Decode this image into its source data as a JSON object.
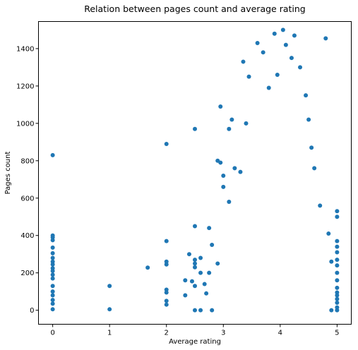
{
  "chart_data": {
    "type": "scatter",
    "title": "Relation between pages count and average rating",
    "xlabel": "Average rating",
    "ylabel": "Pages count",
    "xlim": [
      -0.25,
      5.25
    ],
    "ylim": [
      -75,
      1545
    ],
    "xticks": [
      0,
      1,
      2,
      3,
      4,
      5
    ],
    "yticks": [
      0,
      200,
      400,
      600,
      800,
      1000,
      1200,
      1400
    ],
    "marker_color": "#1f77b4",
    "grid": false,
    "series": [
      {
        "points": [
          [
            0,
            830
          ],
          [
            0,
            400
          ],
          [
            0,
            390
          ],
          [
            0,
            375
          ],
          [
            0,
            335
          ],
          [
            0,
            305
          ],
          [
            0,
            280
          ],
          [
            0,
            260
          ],
          [
            0,
            245
          ],
          [
            0,
            225
          ],
          [
            0,
            210
          ],
          [
            0,
            190
          ],
          [
            0,
            170
          ],
          [
            0,
            130
          ],
          [
            0,
            100
          ],
          [
            0,
            80
          ],
          [
            0,
            55
          ],
          [
            0,
            35
          ],
          [
            0,
            5
          ],
          [
            1,
            130
          ],
          [
            1,
            5
          ],
          [
            1.67,
            228
          ],
          [
            2,
            890
          ],
          [
            2,
            370
          ],
          [
            2,
            260
          ],
          [
            2,
            245
          ],
          [
            2,
            110
          ],
          [
            2,
            95
          ],
          [
            2,
            50
          ],
          [
            2,
            30
          ],
          [
            2.33,
            160
          ],
          [
            2.33,
            80
          ],
          [
            2.4,
            300
          ],
          [
            2.45,
            155
          ],
          [
            2.5,
            970
          ],
          [
            2.5,
            450
          ],
          [
            2.5,
            270
          ],
          [
            2.5,
            250
          ],
          [
            2.5,
            230
          ],
          [
            2.5,
            130
          ],
          [
            2.5,
            0
          ],
          [
            2.6,
            280
          ],
          [
            2.6,
            200
          ],
          [
            2.6,
            0
          ],
          [
            2.67,
            140
          ],
          [
            2.7,
            90
          ],
          [
            2.75,
            440
          ],
          [
            2.75,
            200
          ],
          [
            2.8,
            350
          ],
          [
            2.8,
            0
          ],
          [
            2.9,
            800
          ],
          [
            2.9,
            250
          ],
          [
            2.95,
            1090
          ],
          [
            2.95,
            790
          ],
          [
            3.0,
            720
          ],
          [
            3.0,
            660
          ],
          [
            3.1,
            970
          ],
          [
            3.1,
            580
          ],
          [
            3.15,
            1020
          ],
          [
            3.2,
            760
          ],
          [
            3.3,
            740
          ],
          [
            3.35,
            1330
          ],
          [
            3.4,
            1000
          ],
          [
            3.45,
            1250
          ],
          [
            3.6,
            1430
          ],
          [
            3.7,
            1380
          ],
          [
            3.8,
            1190
          ],
          [
            3.9,
            1480
          ],
          [
            3.95,
            1260
          ],
          [
            4.05,
            1500
          ],
          [
            4.1,
            1420
          ],
          [
            4.2,
            1350
          ],
          [
            4.25,
            1470
          ],
          [
            4.35,
            1300
          ],
          [
            4.45,
            1150
          ],
          [
            4.5,
            1020
          ],
          [
            4.55,
            870
          ],
          [
            4.6,
            760
          ],
          [
            4.7,
            560
          ],
          [
            4.8,
            1455
          ],
          [
            4.85,
            410
          ],
          [
            4.9,
            260
          ],
          [
            4.9,
            0
          ],
          [
            5,
            530
          ],
          [
            5,
            500
          ],
          [
            5,
            370
          ],
          [
            5,
            340
          ],
          [
            5,
            310
          ],
          [
            5,
            270
          ],
          [
            5,
            240
          ],
          [
            5,
            200
          ],
          [
            5,
            160
          ],
          [
            5,
            120
          ],
          [
            5,
            95
          ],
          [
            5,
            80
          ],
          [
            5,
            60
          ],
          [
            5,
            40
          ],
          [
            5,
            15
          ],
          [
            5,
            0
          ]
        ]
      }
    ]
  }
}
